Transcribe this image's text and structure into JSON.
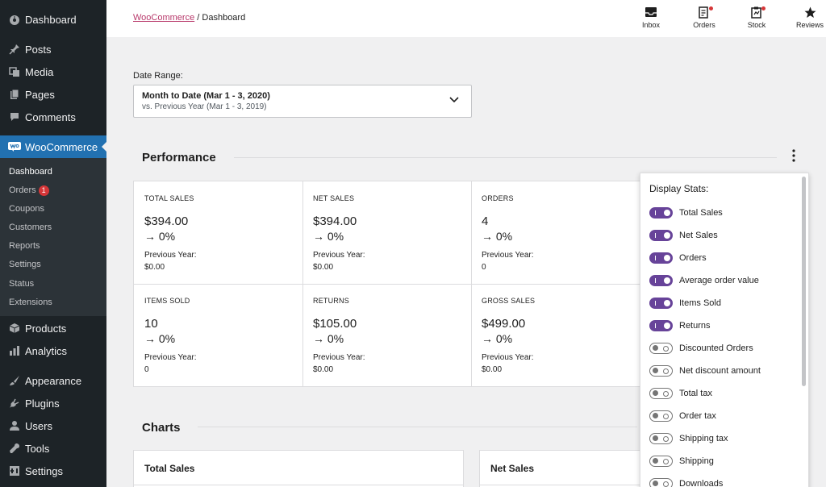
{
  "sidebar": {
    "top": [
      {
        "icon": "dashboard-icon",
        "label": "Dashboard"
      },
      {
        "icon": "pin-icon",
        "label": "Posts"
      },
      {
        "icon": "media-icon",
        "label": "Media"
      },
      {
        "icon": "pages-icon",
        "label": "Pages"
      },
      {
        "icon": "comments-icon",
        "label": "Comments"
      }
    ],
    "active": {
      "icon": "woo-icon",
      "label": "WooCommerce"
    },
    "submenu": [
      {
        "label": "Dashboard"
      },
      {
        "label": "Orders",
        "badge": "1"
      },
      {
        "label": "Coupons"
      },
      {
        "label": "Customers"
      },
      {
        "label": "Reports"
      },
      {
        "label": "Settings"
      },
      {
        "label": "Status"
      },
      {
        "label": "Extensions"
      }
    ],
    "bottom": [
      {
        "icon": "box-icon",
        "label": "Products"
      },
      {
        "icon": "bar-chart-icon",
        "label": "Analytics"
      },
      {
        "icon": "brush-icon",
        "label": "Appearance"
      },
      {
        "icon": "plug-icon",
        "label": "Plugins"
      },
      {
        "icon": "user-icon",
        "label": "Users"
      },
      {
        "icon": "wrench-icon",
        "label": "Tools"
      },
      {
        "icon": "settings-icon",
        "label": "Settings"
      }
    ]
  },
  "header": {
    "breadcrumb_link": "WooCommerce",
    "breadcrumb_sep": " / ",
    "breadcrumb_current": "Dashboard",
    "buttons": [
      {
        "icon": "inbox-icon",
        "label": "Inbox"
      },
      {
        "icon": "orders-icon",
        "label": "Orders"
      },
      {
        "icon": "stock-icon",
        "label": "Stock"
      },
      {
        "icon": "star-icon",
        "label": "Reviews"
      }
    ]
  },
  "date_range": {
    "label": "Date Range:",
    "primary": "Month to Date (Mar 1 - 3, 2020)",
    "secondary": "vs. Previous Year (Mar 1 - 3, 2019)"
  },
  "performance": {
    "title": "Performance",
    "stats": [
      {
        "label": "TOTAL SALES",
        "value": "$394.00",
        "delta": "→ 0%",
        "prev_label": "Previous Year:",
        "prev_value": "$0.00"
      },
      {
        "label": "NET SALES",
        "value": "$394.00",
        "delta": "→ 0%",
        "prev_label": "Previous Year:",
        "prev_value": "$0.00"
      },
      {
        "label": "ORDERS",
        "value": "4",
        "delta": "→ 0%",
        "prev_label": "Previous Year:",
        "prev_value": "0"
      },
      {
        "label": "ITEMS SOLD",
        "value": "10",
        "delta": "→ 0%",
        "prev_label": "Previous Year:",
        "prev_value": "0"
      },
      {
        "label": "RETURNS",
        "value": "$105.00",
        "delta": "→ 0%",
        "prev_label": "Previous Year:",
        "prev_value": "$0.00"
      },
      {
        "label": "GROSS SALES",
        "value": "$499.00",
        "delta": "→ 0%",
        "prev_label": "Previous Year:",
        "prev_value": "$0.00"
      }
    ]
  },
  "charts": {
    "title": "Charts",
    "cards": [
      "Total Sales",
      "Net Sales"
    ]
  },
  "display_stats": {
    "title": "Display Stats:",
    "items": [
      {
        "label": "Total Sales",
        "on": true
      },
      {
        "label": "Net Sales",
        "on": true
      },
      {
        "label": "Orders",
        "on": true
      },
      {
        "label": "Average order value",
        "on": true
      },
      {
        "label": "Items Sold",
        "on": true
      },
      {
        "label": "Returns",
        "on": true
      },
      {
        "label": "Discounted Orders",
        "on": false
      },
      {
        "label": "Net discount amount",
        "on": false
      },
      {
        "label": "Total tax",
        "on": false
      },
      {
        "label": "Order tax",
        "on": false
      },
      {
        "label": "Shipping tax",
        "on": false
      },
      {
        "label": "Shipping",
        "on": false
      },
      {
        "label": "Downloads",
        "on": false
      }
    ]
  },
  "colors": {
    "sidebar_bg": "#1d2327",
    "active_menu": "#2271b1",
    "toggle_on": "#674399",
    "breadcrumb_link": "#b8396b",
    "badge": "#d63638"
  }
}
